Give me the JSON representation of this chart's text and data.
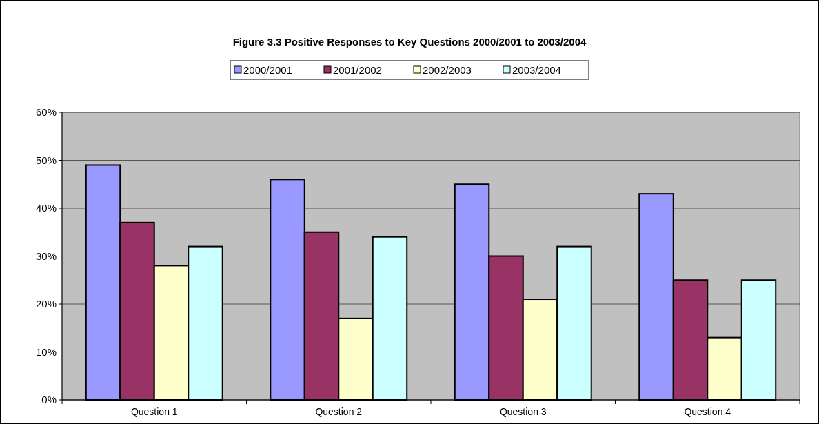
{
  "chart_data": {
    "type": "bar",
    "title": "Figure 3.3  Positive Responses to Key Questions 2000/2001 to 2003/2004",
    "categories": [
      "Question 1",
      "Question 2",
      "Question 3",
      "Question 4"
    ],
    "series": [
      {
        "name": "2000/2001",
        "color": "#9999ff",
        "values": [
          49,
          46,
          45,
          43
        ]
      },
      {
        "name": "2001/2002",
        "color": "#993366",
        "values": [
          37,
          35,
          30,
          25
        ]
      },
      {
        "name": "2002/2003",
        "color": "#ffffcc",
        "values": [
          28,
          17,
          21,
          13
        ]
      },
      {
        "name": "2003/2004",
        "color": "#ccffff",
        "values": [
          32,
          34,
          32,
          25
        ]
      }
    ],
    "ylim": [
      0,
      60
    ],
    "yticks": [
      {
        "value": 0,
        "label": "0%"
      },
      {
        "value": 10,
        "label": "10%"
      },
      {
        "value": 20,
        "label": "20%"
      },
      {
        "value": 30,
        "label": "30%"
      },
      {
        "value": 40,
        "label": "40%"
      },
      {
        "value": 50,
        "label": "50%"
      },
      {
        "value": 60,
        "label": "60%"
      }
    ],
    "grid": "y",
    "legend": "top"
  }
}
